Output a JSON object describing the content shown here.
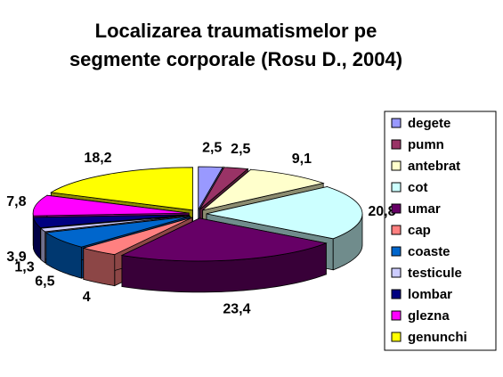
{
  "chart_data": {
    "type": "pie3d",
    "title": [
      "Localizarea traumatismelor pe",
      "segmente corporale (Rosu D., 2004)"
    ],
    "categories": [
      "degete",
      "pumn",
      "antebrat",
      "cot",
      "umar",
      "cap",
      "coaste",
      "testicule",
      "lombar",
      "glezna",
      "genunchi"
    ],
    "values": [
      2.5,
      2.5,
      9.1,
      20.8,
      23.4,
      4,
      6.5,
      1.3,
      3.9,
      7.8,
      18.2
    ],
    "value_labels": [
      "2,5",
      "2,5",
      "9,1",
      "20,8",
      "23,4",
      "4",
      "6,5",
      "1,3",
      "3,9",
      "7,8",
      "18,2"
    ],
    "colors": [
      "#9999ff",
      "#993366",
      "#ffffcc",
      "#ccffff",
      "#660066",
      "#ff8080",
      "#0066cc",
      "#ccccff",
      "#000080",
      "#ff00ff",
      "#ffff00"
    ],
    "legend": "right"
  }
}
